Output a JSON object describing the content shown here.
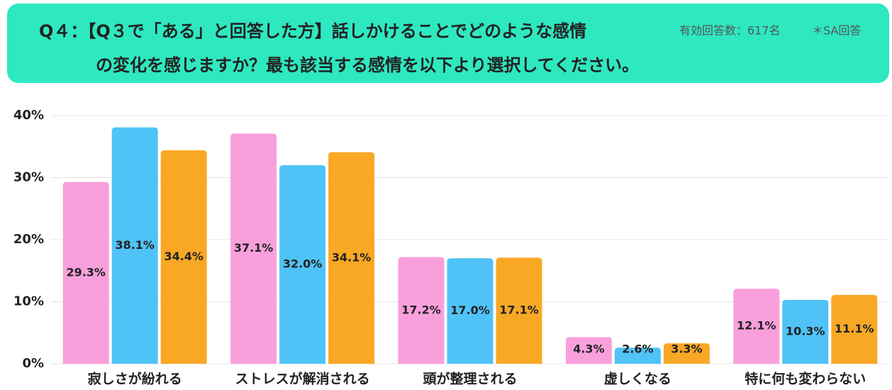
{
  "chart_data": {
    "type": "bar",
    "title": [
      "Q４：【Q３で「ある」と回答した方】話しかけることでどのような感情",
      "の変化を感じますか？最も該当する感情を以下より選択してください。"
    ],
    "annotations": [
      "有効回答数：617名",
      "＊SA回答"
    ],
    "categories": [
      "寂しさが紛れる",
      "ストレスが解消される",
      "頭が整理される",
      "虚しくなる",
      "特に何も変わらない"
    ],
    "series": [
      {
        "color": "#f9a0dc",
        "values": [
          29.3,
          37.1,
          17.2,
          4.3,
          12.1
        ],
        "value_labels": [
          "29.3%",
          "37.1%",
          "17.2%",
          "4.3%",
          "12.1%"
        ]
      },
      {
        "color": "#4fc3f7",
        "values": [
          38.1,
          32.0,
          17.0,
          2.6,
          10.3
        ],
        "value_labels": [
          "38.1%",
          "32.0%",
          "17.0%",
          "2.6%",
          "10.3%"
        ]
      },
      {
        "color": "#f9a825",
        "values": [
          34.4,
          34.1,
          17.1,
          3.3,
          11.1
        ],
        "value_labels": [
          "34.4%",
          "34.1%",
          "17.1%",
          "3.3%",
          "11.1%"
        ]
      }
    ],
    "ylim": [
      0,
      40
    ],
    "yticks": [
      {
        "value": 0,
        "label": "0%"
      },
      {
        "value": 10,
        "label": "10%"
      },
      {
        "value": 20,
        "label": "20%"
      },
      {
        "value": 30,
        "label": "30%"
      },
      {
        "value": 40,
        "label": "40%"
      }
    ],
    "grid": true
  }
}
